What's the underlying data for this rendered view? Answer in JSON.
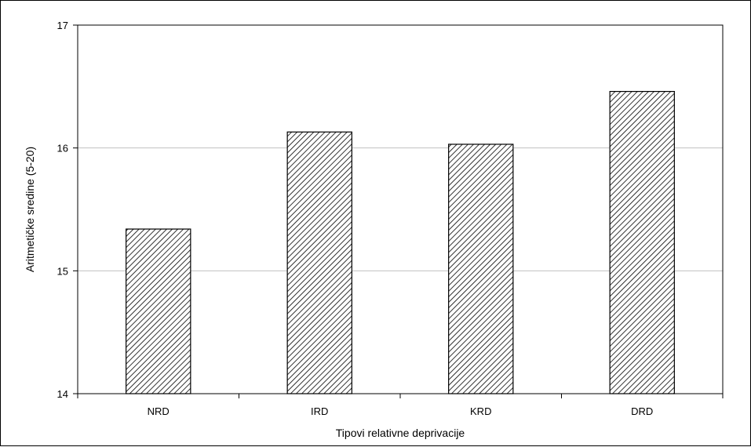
{
  "chart_data": {
    "type": "bar",
    "title": "",
    "xlabel": "Tipovi relativne deprivacije",
    "ylabel": "Aritmetičke sredine (5-20)",
    "categories": [
      "NRD",
      "IRD",
      "KRD",
      "DRD"
    ],
    "values": [
      15.34,
      16.13,
      16.03,
      16.46
    ],
    "ylim": [
      14,
      17
    ],
    "yticks": [
      "14",
      "15",
      "16",
      "17"
    ],
    "grid": "horizontal",
    "legend": "none",
    "bar_fill": "diagonal hatch",
    "colors": {
      "bar_stroke": "#000000",
      "hatch": "#000000",
      "grid": "#c0c0c0"
    }
  }
}
